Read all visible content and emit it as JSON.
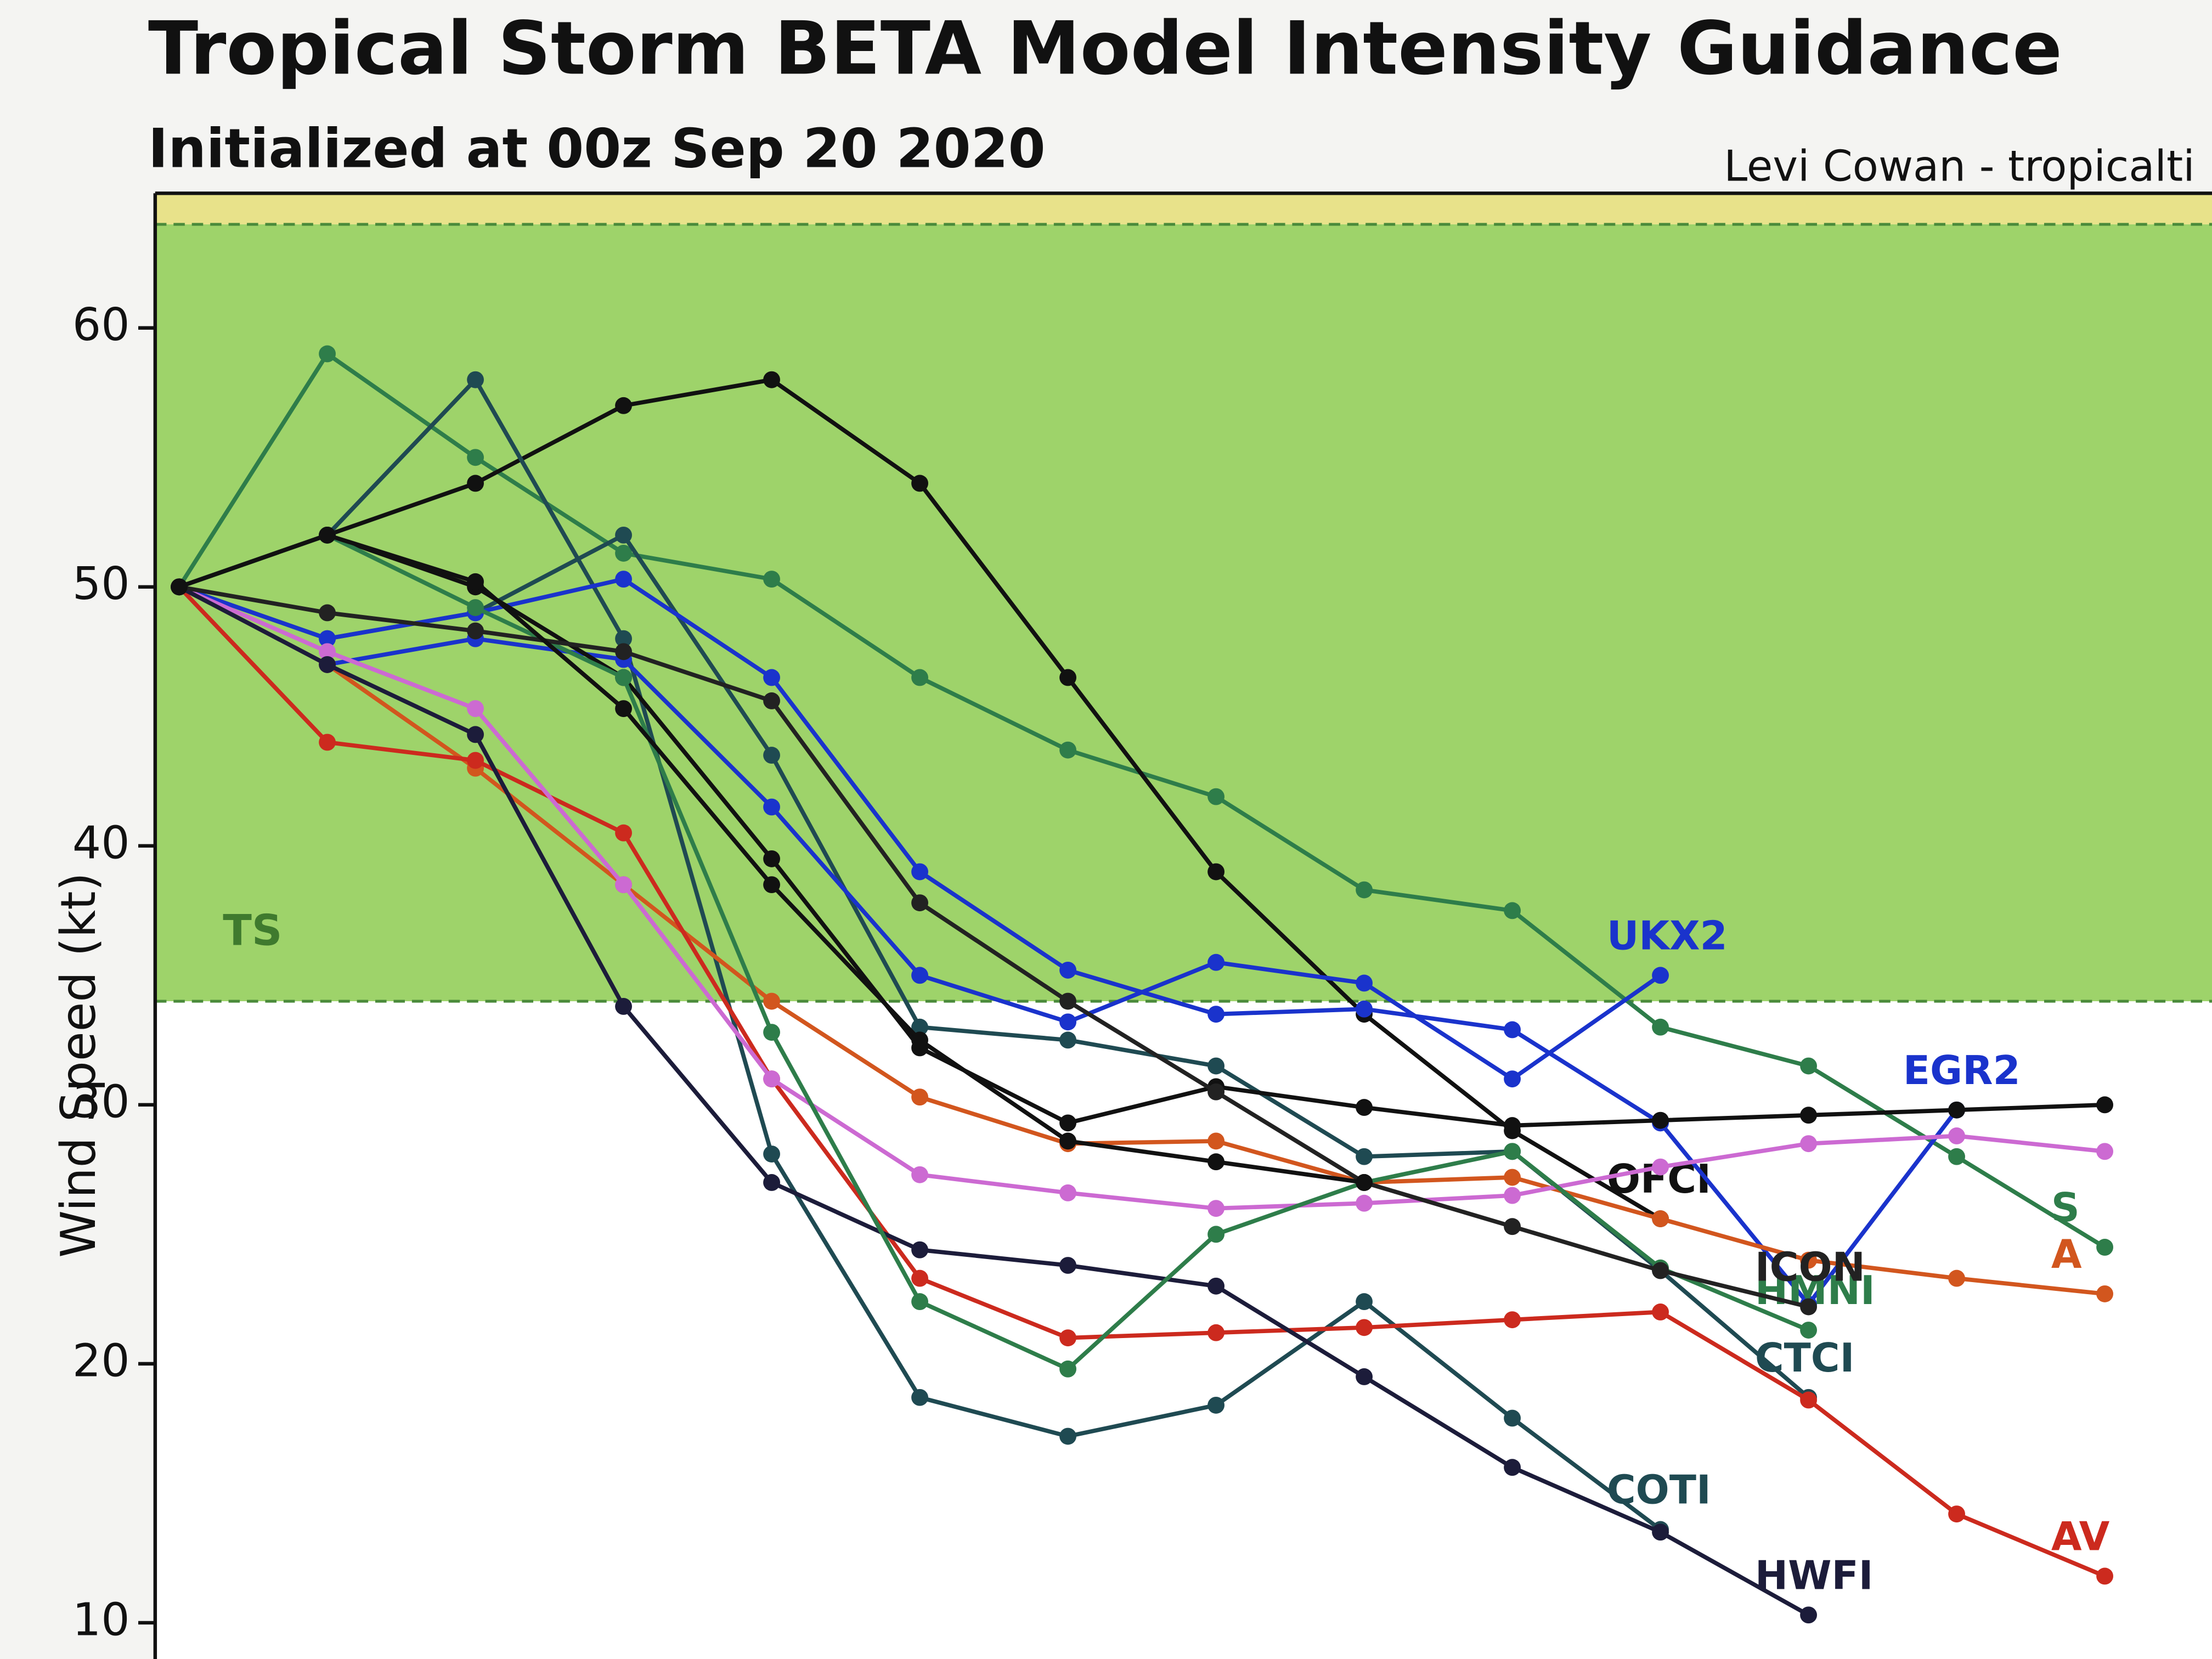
{
  "chart_data": {
    "type": "line",
    "title": "Tropical Storm BETA Model Intensity Guidance",
    "subtitle": "Initialized at 00z Sep 20 2020",
    "credit": "Levi Cowan - tropicalti",
    "y_label": "Wind Speed (kt)",
    "ylim": [
      8.6,
      65.2
    ],
    "yticks": [
      10,
      20,
      30,
      40,
      50,
      60
    ],
    "bands": [
      {
        "from": 34,
        "to": 64,
        "color": "#9ed36a",
        "label": "TS"
      },
      {
        "from": 64,
        "to": 65.2,
        "color": "#e8e28a"
      }
    ],
    "categories": [
      null,
      null,
      null,
      null,
      null,
      null,
      null,
      null,
      null,
      null,
      null,
      null,
      null,
      null
    ],
    "series": [
      {
        "name": "S",
        "color": "#2e7d4a",
        "values": [
          50,
          59,
          55,
          51.3,
          50.3,
          46.5,
          43.7,
          41.9,
          38.3,
          37.5,
          33,
          31.5,
          28,
          24.5
        ]
      },
      {
        "name": "OFCI",
        "color": "#111111",
        "values": [
          50,
          52,
          54,
          57,
          58,
          54,
          46.5,
          39,
          33.5,
          29,
          25.6,
          null,
          null,
          null
        ]
      },
      {
        "name": "COTI",
        "color": "#1f4a52",
        "values": [
          50,
          52,
          58,
          48,
          28.1,
          18.7,
          17.2,
          18.4,
          22.4,
          17.9,
          13.6,
          null,
          null,
          null
        ]
      },
      {
        "name": "CTCI",
        "color": "#1f4a52",
        "values": [
          50,
          48,
          49,
          52,
          43.5,
          33,
          32.5,
          31.5,
          28,
          28.2,
          23.6,
          18.7,
          null,
          null
        ]
      },
      {
        "name": "UKX2",
        "color": "#1a33cc",
        "values": [
          50,
          47,
          48,
          47.2,
          41.5,
          35,
          33.2,
          35.5,
          34.7,
          31,
          35,
          null,
          null,
          null
        ]
      },
      {
        "name": "EGR2",
        "color": "#1a33cc",
        "values": [
          50,
          48,
          49,
          50.3,
          46.5,
          39,
          35.2,
          33.5,
          33.7,
          32.9,
          29.3,
          22.3,
          29.8,
          null
        ]
      },
      {
        "color": "#111111",
        "values": [
          50,
          52,
          50,
          46.5,
          39.5,
          32.2,
          29.3,
          30.7,
          29.9,
          29.2,
          29.4,
          29.6,
          29.8,
          30
        ]
      },
      {
        "name": "A",
        "color": "#d2561e",
        "values": [
          50,
          47,
          43,
          38.5,
          34,
          30.3,
          28.5,
          28.6,
          27,
          27.2,
          25.6,
          24,
          23.3,
          22.7
        ]
      },
      {
        "name": "AV",
        "color": "#cc2a1e",
        "values": [
          50,
          44,
          43.3,
          40.5,
          31,
          23.3,
          21,
          21.2,
          21.4,
          21.7,
          22,
          18.6,
          14.2,
          11.8
        ]
      },
      {
        "color": "#cc6ad2",
        "values": [
          50,
          47.5,
          45.3,
          38.5,
          31,
          27.3,
          26.6,
          26,
          26.2,
          26.5,
          27.6,
          28.5,
          28.8,
          28.2
        ]
      },
      {
        "name": "HWFI",
        "color": "#1c1c3a",
        "values": [
          50,
          47,
          44.3,
          33.8,
          27,
          24.4,
          23.8,
          23,
          19.5,
          16,
          13.5,
          10.3,
          null,
          null
        ]
      },
      {
        "name": "HMNI",
        "color": "#2e7d4a",
        "values": [
          50,
          52,
          49.2,
          46.5,
          32.8,
          22.4,
          19.8,
          25,
          27,
          28.2,
          23.7,
          21.3,
          null,
          null
        ]
      },
      {
        "name": "ICON",
        "color": "#222222",
        "values": [
          50,
          49,
          48.3,
          47.5,
          45.6,
          37.8,
          34,
          30.5,
          27,
          25.3,
          23.6,
          22.2,
          null,
          null
        ]
      },
      {
        "color": "#111111",
        "values": [
          50,
          52,
          50.2,
          45.3,
          38.5,
          32.5,
          28.6,
          27.8,
          27,
          null,
          null,
          null,
          null,
          null
        ]
      }
    ]
  }
}
